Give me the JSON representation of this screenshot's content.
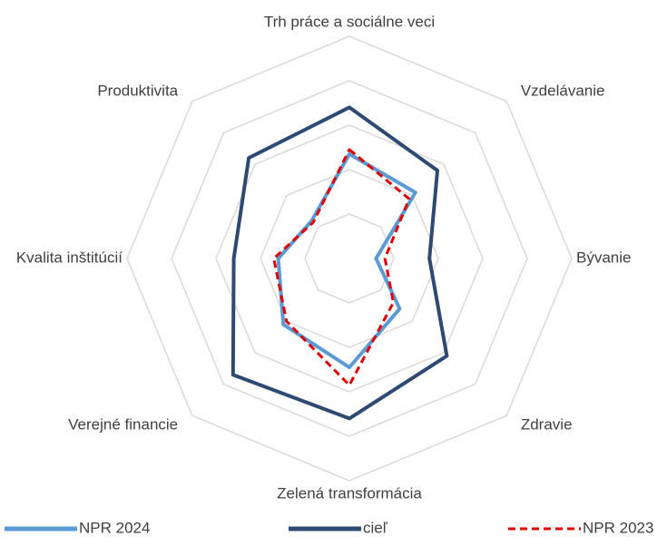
{
  "chart_data": {
    "type": "radar",
    "categories": [
      "Trh práce a sociálne veci",
      "Vzdelávanie",
      "Bývanie",
      "Zdravie",
      "Zelená transformácia",
      "Verejné financie",
      "Kvalita inštitúcií",
      "Produktivita"
    ],
    "ylim": [
      0,
      5
    ],
    "yticks": [
      0,
      1,
      2,
      3,
      4,
      5
    ],
    "grid": true,
    "legend": "bottom",
    "series": [
      {
        "name": "NPR 2024",
        "color": "#5b9bd5",
        "dash": false,
        "values": [
          2.35,
          2.1,
          0.6,
          1.6,
          2.45,
          2.1,
          1.6,
          1.2
        ]
      },
      {
        "name": "cieľ",
        "color": "#2e4a72",
        "dash": false,
        "values": [
          3.4,
          2.8,
          1.8,
          3.1,
          3.6,
          3.7,
          2.6,
          3.2
        ]
      },
      {
        "name": "NPR 2023",
        "color": "#e00000",
        "dash": true,
        "values": [
          2.45,
          1.9,
          0.8,
          1.4,
          2.85,
          2.0,
          1.7,
          1.15
        ]
      }
    ]
  }
}
